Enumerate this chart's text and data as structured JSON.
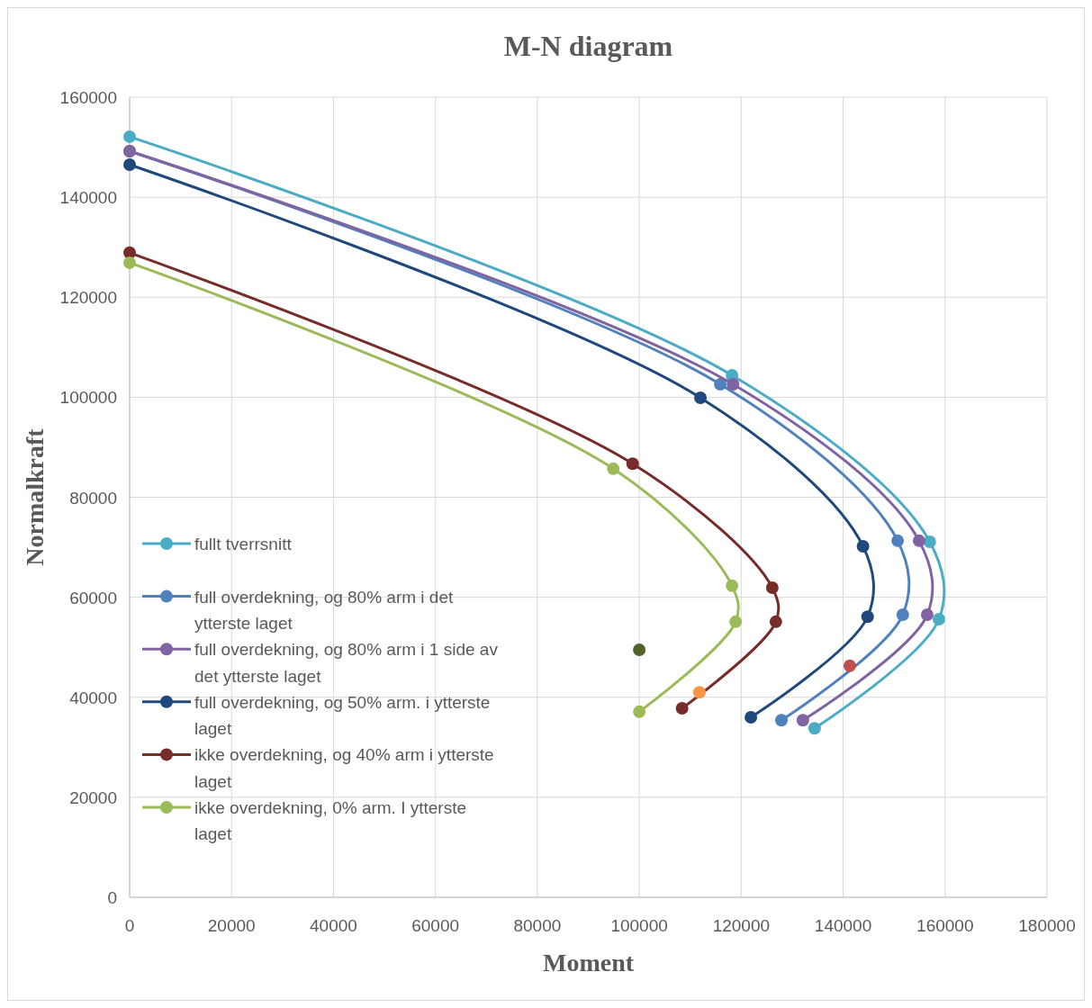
{
  "chart_data": {
    "type": "line",
    "title": "M-N diagram",
    "xlabel": "Moment",
    "ylabel": "Normalkraft",
    "xlim": [
      0,
      180000
    ],
    "xticks": [
      0,
      20000,
      40000,
      60000,
      80000,
      100000,
      120000,
      140000,
      160000,
      180000
    ],
    "ylim": [
      0,
      160000
    ],
    "yticks": [
      0,
      20000,
      40000,
      60000,
      80000,
      100000,
      120000,
      140000,
      160000
    ],
    "grid": true,
    "legend": "left",
    "marker": "circle",
    "line_style": "solid",
    "series": [
      {
        "name": "fullt tverrsnitt",
        "color": "#4bacc6",
        "x": [
          0,
          118200,
          157000,
          158800,
          134400
        ],
        "values": [
          152100,
          104400,
          71100,
          55600,
          33800
        ]
      },
      {
        "name": "full overdekning, og 80% arm i det ytterste laget",
        "color": "#4f81bd",
        "x": [
          0,
          115900,
          150700,
          151700,
          127900
        ],
        "values": [
          149200,
          102600,
          71300,
          56500,
          35400
        ]
      },
      {
        "name": "full overdekning, og 80% arm i 1 side av det ytterste laget",
        "color": "#8064a2",
        "x": [
          0,
          118400,
          154900,
          156500,
          132100
        ],
        "values": [
          149200,
          102600,
          71300,
          56500,
          35400
        ]
      },
      {
        "name": "full overdekning, og 50% arm. i ytterste laget",
        "color": "#1f497d",
        "x": [
          0,
          112000,
          143900,
          144800,
          121900
        ],
        "values": [
          146500,
          99900,
          70200,
          56100,
          36000
        ]
      },
      {
        "name": "ikke overdekning, og 40% arm i ytterste laget",
        "color": "#772c2a",
        "x": [
          0,
          98700,
          126100,
          126800,
          108400
        ],
        "values": [
          128900,
          86700,
          61900,
          55100,
          37800
        ]
      },
      {
        "name": "ikke overdekning, 0% arm. I ytterste laget",
        "color": "#9bbb59",
        "x": [
          0,
          94900,
          118200,
          118900,
          100000
        ],
        "values": [
          126900,
          85700,
          62300,
          55100,
          37100
        ]
      },
      {
        "type": "scatter",
        "color": "#4f6228",
        "x": [
          100000
        ],
        "values": [
          49500
        ]
      },
      {
        "type": "scatter",
        "color": "#f79646",
        "x": [
          111800
        ],
        "values": [
          41000
        ]
      },
      {
        "type": "scatter",
        "color": "#c0504d",
        "x": [
          141300
        ],
        "values": [
          46300
        ]
      }
    ]
  }
}
